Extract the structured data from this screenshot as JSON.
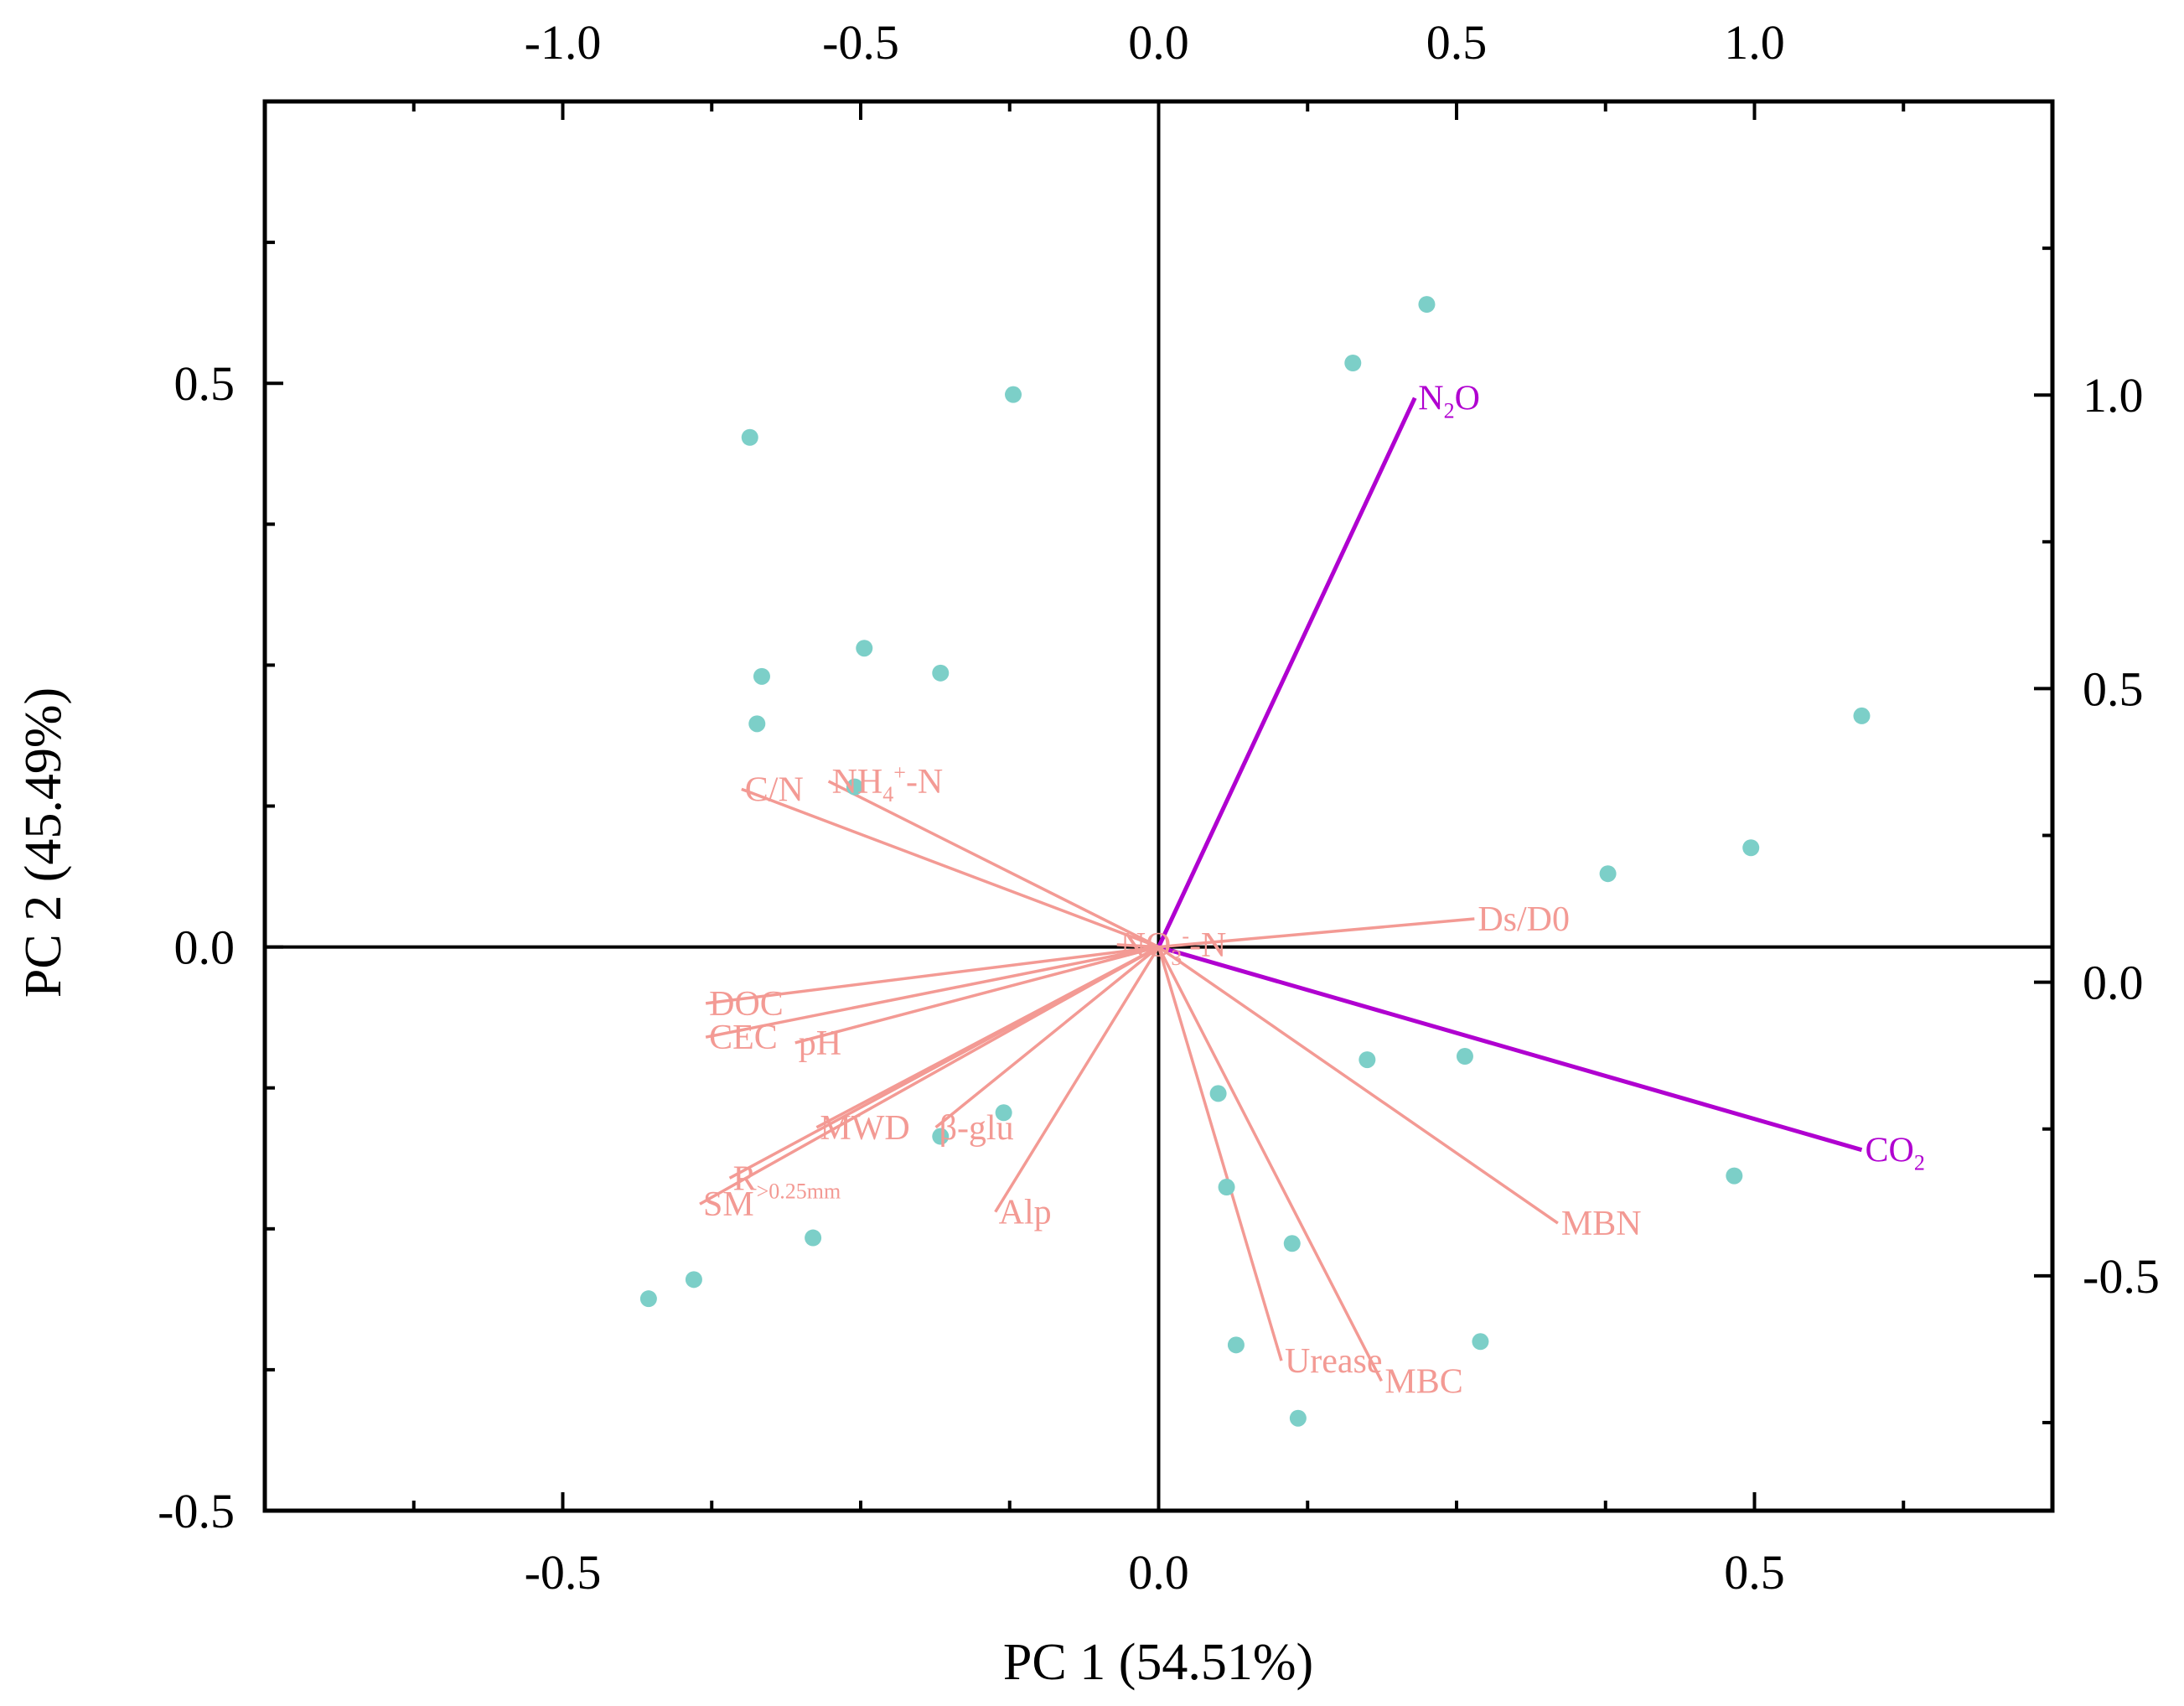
{
  "chart_data": {
    "type": "scatter",
    "subtype": "pca-biplot",
    "xlabel": "PC 1 (54.51%)",
    "ylabel": "PC 2 (45.49%)",
    "xlim": [
      -0.75,
      0.75
    ],
    "ylim": [
      -0.5,
      0.75
    ],
    "x_ticks": [
      "-0.5",
      "0.0",
      "0.5"
    ],
    "y_ticks": [
      "-0.5",
      "0.0",
      "0.5"
    ],
    "top_axis": {
      "lim": [
        -1.5,
        1.5
      ],
      "ticks": [
        "-1.0",
        "-0.5",
        "0.0",
        "0.5",
        "1.0"
      ]
    },
    "right_axis": {
      "lim": [
        -0.9,
        1.5
      ],
      "ticks": [
        "-0.5",
        "0.0",
        "0.5",
        "1.0"
      ]
    },
    "colors": {
      "points": "#7ccfc8",
      "soil_vectors": "#f39a94",
      "gas_vectors": "#b000d0",
      "axes": "#000000"
    },
    "points": [
      {
        "x": 0.225,
        "y": 0.57
      },
      {
        "x": 0.163,
        "y": 0.518
      },
      {
        "x": -0.122,
        "y": 0.49
      },
      {
        "x": -0.343,
        "y": 0.452
      },
      {
        "x": -0.247,
        "y": 0.265
      },
      {
        "x": -0.333,
        "y": 0.24
      },
      {
        "x": -0.183,
        "y": 0.243
      },
      {
        "x": -0.337,
        "y": 0.198
      },
      {
        "x": -0.255,
        "y": 0.142
      },
      {
        "x": 0.59,
        "y": 0.205
      },
      {
        "x": 0.497,
        "y": 0.088
      },
      {
        "x": 0.377,
        "y": 0.065
      },
      {
        "x": 0.175,
        "y": -0.1
      },
      {
        "x": 0.257,
        "y": -0.097
      },
      {
        "x": 0.05,
        "y": -0.13
      },
      {
        "x": -0.13,
        "y": -0.147
      },
      {
        "x": -0.183,
        "y": -0.168
      },
      {
        "x": 0.057,
        "y": -0.213
      },
      {
        "x": 0.112,
        "y": -0.263
      },
      {
        "x": -0.29,
        "y": -0.258
      },
      {
        "x": -0.39,
        "y": -0.295
      },
      {
        "x": -0.428,
        "y": -0.312
      },
      {
        "x": 0.065,
        "y": -0.353
      },
      {
        "x": 0.27,
        "y": -0.35
      },
      {
        "x": 0.117,
        "y": -0.418
      },
      {
        "x": 0.483,
        "y": -0.203
      }
    ],
    "vectors": [
      {
        "name": "N2O",
        "label": "N",
        "sub": "2",
        "suffix": "O",
        "group": "gas",
        "x": 0.215,
        "y": 0.487
      },
      {
        "name": "CO2",
        "label": "CO",
        "sub": "2",
        "suffix": "",
        "group": "gas",
        "x": 0.59,
        "y": -0.18
      },
      {
        "name": "C/N",
        "label": "C/N",
        "group": "soil",
        "x": -0.35,
        "y": 0.14
      },
      {
        "name": "NH4+-N",
        "label": "NH",
        "sub": "4",
        "sup": "+",
        "suffix": "-N",
        "group": "soil",
        "x": -0.277,
        "y": 0.147
      },
      {
        "name": "Ds/D0",
        "label": "Ds/D0",
        "group": "soil",
        "x": 0.265,
        "y": 0.025
      },
      {
        "name": "NO3--N",
        "label": "NO",
        "sub": "3",
        "sup": "-",
        "suffix": "-N",
        "group": "soil",
        "x": -0.035,
        "y": 0.002
      },
      {
        "name": "DOC",
        "label": "DOC",
        "group": "soil",
        "x": -0.38,
        "y": -0.05
      },
      {
        "name": "CEC",
        "label": "CEC",
        "group": "soil",
        "x": -0.38,
        "y": -0.08
      },
      {
        "name": "pH",
        "label": "pH",
        "group": "soil",
        "x": -0.305,
        "y": -0.085
      },
      {
        "name": "MWD",
        "label": "MWD",
        "group": "soil",
        "x": -0.287,
        "y": -0.16
      },
      {
        "name": "β-glu",
        "label": "β-glu",
        "group": "soil",
        "x": -0.187,
        "y": -0.16
      },
      {
        "name": "Alp",
        "label": "Alp",
        "group": "soil",
        "x": -0.137,
        "y": -0.235
      },
      {
        "name": "R>0.25mm",
        "label": "R",
        "sub": ">0.25mm",
        "suffix": "",
        "group": "soil",
        "x": -0.36,
        "y": -0.205
      },
      {
        "name": "SM",
        "label": "SM",
        "group": "soil",
        "x": -0.385,
        "y": -0.228
      },
      {
        "name": "MBN",
        "label": "MBN",
        "group": "soil",
        "x": 0.335,
        "y": -0.245
      },
      {
        "name": "Urease",
        "label": "Urease",
        "group": "soil",
        "x": 0.103,
        "y": -0.367
      },
      {
        "name": "MBC",
        "label": "MBC",
        "group": "soil",
        "x": 0.187,
        "y": -0.385
      }
    ]
  }
}
